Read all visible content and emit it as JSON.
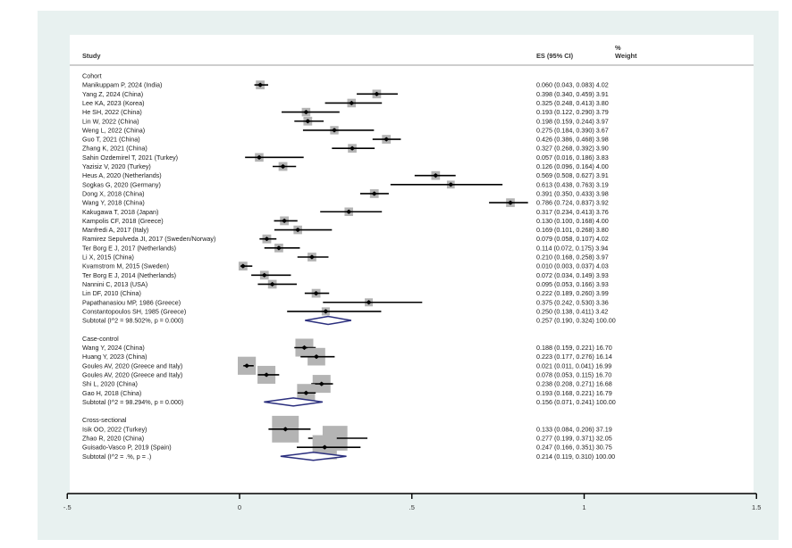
{
  "chart_data": {
    "type": "forest",
    "columns": {
      "study": "Study",
      "es": "ES (95% CI)",
      "weight_top": "%",
      "weight": "Weight"
    },
    "xlim": [
      -0.5,
      1.5
    ],
    "xticks": [
      "-.5",
      "0",
      ".5",
      "1",
      "1.5"
    ],
    "xtick_values": [
      -0.5,
      0,
      0.5,
      1,
      1.5
    ],
    "grid": false,
    "colors": {
      "box": "#b4b4b4",
      "diamond": "#2b2f7e",
      "line": "#000000",
      "panel": "#e8f1f0"
    },
    "groups": [
      {
        "name": "Cohort",
        "studies": [
          {
            "label": "Manikuppam P, 2024 (India)",
            "es": 0.06,
            "lo": 0.043,
            "hi": 0.083,
            "w": 4.02
          },
          {
            "label": "Yang Z, 2024 (China)",
            "es": 0.398,
            "lo": 0.34,
            "hi": 0.459,
            "w": 3.91
          },
          {
            "label": "Lee KA, 2023 (Korea)",
            "es": 0.325,
            "lo": 0.248,
            "hi": 0.413,
            "w": 3.8
          },
          {
            "label": "He SH, 2022 (China)",
            "es": 0.193,
            "lo": 0.122,
            "hi": 0.29,
            "w": 3.79
          },
          {
            "label": "Lin W, 2022 (China)",
            "es": 0.198,
            "lo": 0.159,
            "hi": 0.244,
            "w": 3.97
          },
          {
            "label": "Weng L, 2022 (China)",
            "es": 0.275,
            "lo": 0.184,
            "hi": 0.39,
            "w": 3.67
          },
          {
            "label": "Guo T, 2021 (China)",
            "es": 0.426,
            "lo": 0.386,
            "hi": 0.468,
            "w": 3.98
          },
          {
            "label": "Zhang K, 2021 (China)",
            "es": 0.327,
            "lo": 0.268,
            "hi": 0.392,
            "w": 3.9
          },
          {
            "label": "Sahin Ozdemirel T, 2021 (Turkey)",
            "es": 0.057,
            "lo": 0.016,
            "hi": 0.186,
            "w": 3.83
          },
          {
            "label": "Yazisiz V, 2020 (Turkey)",
            "es": 0.126,
            "lo": 0.096,
            "hi": 0.164,
            "w": 4.0
          },
          {
            "label": "Heus A, 2020 (Netherlands)",
            "es": 0.569,
            "lo": 0.508,
            "hi": 0.627,
            "w": 3.91
          },
          {
            "label": "Sogkas G, 2020 (Germany)",
            "es": 0.613,
            "lo": 0.438,
            "hi": 0.763,
            "w": 3.19
          },
          {
            "label": "Dong X, 2018 (China)",
            "es": 0.391,
            "lo": 0.35,
            "hi": 0.433,
            "w": 3.98
          },
          {
            "label": "Wang Y, 2018 (China)",
            "es": 0.786,
            "lo": 0.724,
            "hi": 0.837,
            "w": 3.92
          },
          {
            "label": "Kakugawa T, 2018 (Japan)",
            "es": 0.317,
            "lo": 0.234,
            "hi": 0.413,
            "w": 3.76
          },
          {
            "label": "Kampolis CF, 2018 (Greece)",
            "es": 0.13,
            "lo": 0.1,
            "hi": 0.168,
            "w": 4.0
          },
          {
            "label": "Manfredi A, 2017 (Italy)",
            "es": 0.169,
            "lo": 0.101,
            "hi": 0.268,
            "w": 3.8
          },
          {
            "label": "Ramirez Sepulveda JI, 2017 (Sweden/Norway)",
            "es": 0.079,
            "lo": 0.058,
            "hi": 0.107,
            "w": 4.02
          },
          {
            "label": "Ter Borg E J, 2017 (Netherlands)",
            "es": 0.114,
            "lo": 0.072,
            "hi": 0.175,
            "w": 3.94
          },
          {
            "label": "Li X, 2015 (China)",
            "es": 0.21,
            "lo": 0.168,
            "hi": 0.258,
            "w": 3.97
          },
          {
            "label": "Kvamstrom M, 2015 (Sweden)",
            "es": 0.01,
            "lo": 0.003,
            "hi": 0.037,
            "w": 4.03
          },
          {
            "label": "Ter Borg E J, 2014 (Netherlands)",
            "es": 0.072,
            "lo": 0.034,
            "hi": 0.149,
            "w": 3.93
          },
          {
            "label": "Nannini C, 2013 (USA)",
            "es": 0.095,
            "lo": 0.053,
            "hi": 0.166,
            "w": 3.93
          },
          {
            "label": "Lin DF, 2010 (China)",
            "es": 0.222,
            "lo": 0.189,
            "hi": 0.26,
            "w": 3.99
          },
          {
            "label": "Papathanasiou MP, 1986 (Greece)",
            "es": 0.375,
            "lo": 0.242,
            "hi": 0.53,
            "w": 3.36
          },
          {
            "label": "Constantopoulos SH, 1985 (Greece)",
            "es": 0.25,
            "lo": 0.138,
            "hi": 0.411,
            "w": 3.42
          }
        ],
        "subtotal": {
          "label": "Subtotal  (I^2 = 98.502%, p = 0.000)",
          "es": 0.257,
          "lo": 0.19,
          "hi": 0.324,
          "w": 100.0
        }
      },
      {
        "name": "Case-control",
        "studies": [
          {
            "label": "Wang Y, 2024 (China)",
            "es": 0.188,
            "lo": 0.159,
            "hi": 0.221,
            "w": 16.7
          },
          {
            "label": "Huang Y, 2023 (China)",
            "es": 0.223,
            "lo": 0.177,
            "hi": 0.276,
            "w": 16.14
          },
          {
            "label": "Goules AV, 2020 (Greece and Italy)",
            "es": 0.021,
            "lo": 0.011,
            "hi": 0.041,
            "w": 16.99
          },
          {
            "label": "Goules AV, 2020 (Greece and Italy)",
            "es": 0.078,
            "lo": 0.053,
            "hi": 0.115,
            "w": 16.7
          },
          {
            "label": "Shi L, 2020 (China)",
            "es": 0.238,
            "lo": 0.208,
            "hi": 0.271,
            "w": 16.68
          },
          {
            "label": "Gao H, 2018 (China)",
            "es": 0.193,
            "lo": 0.168,
            "hi": 0.221,
            "w": 16.79
          }
        ],
        "subtotal": {
          "label": "Subtotal  (I^2 = 98.294%, p = 0.000)",
          "es": 0.156,
          "lo": 0.071,
          "hi": 0.241,
          "w": 100.0
        }
      },
      {
        "name": "Cross-sectional",
        "studies": [
          {
            "label": "Isik OO, 2022 (Turkey)",
            "es": 0.133,
            "lo": 0.084,
            "hi": 0.206,
            "w": 37.19
          },
          {
            "label": "Zhao R, 2020 (China)",
            "es": 0.277,
            "lo": 0.199,
            "hi": 0.371,
            "w": 32.05
          },
          {
            "label": "Guisado-Vasco P, 2019 (Spain)",
            "es": 0.247,
            "lo": 0.166,
            "hi": 0.351,
            "w": 30.75
          }
        ],
        "subtotal": {
          "label": "Subtotal  (I^2 = .%, p = .)",
          "es": 0.214,
          "lo": 0.119,
          "hi": 0.31,
          "w": 100.0
        }
      }
    ]
  }
}
